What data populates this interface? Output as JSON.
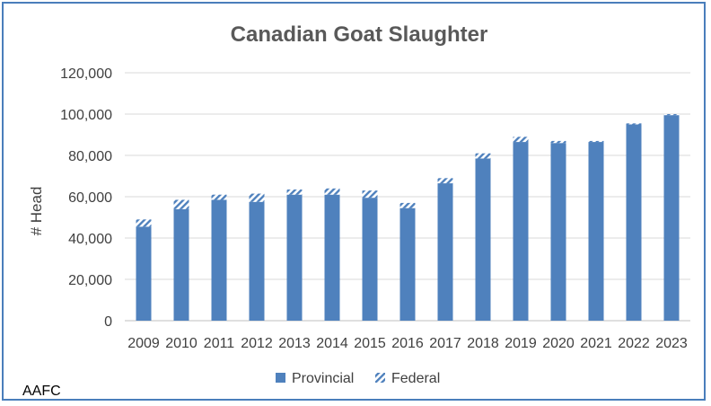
{
  "chart_data": {
    "type": "bar",
    "stacked": true,
    "title": "Canadian Goat Slaughter",
    "xlabel": "",
    "ylabel": "# Head",
    "ylim": [
      0,
      120000
    ],
    "yticks": [
      0,
      20000,
      40000,
      60000,
      80000,
      100000,
      120000
    ],
    "ytick_labels": [
      "0",
      "20,000",
      "40,000",
      "60,000",
      "80,000",
      "100,000",
      "120,000"
    ],
    "grid": true,
    "legend": "bottom",
    "categories": [
      "2009",
      "2010",
      "2011",
      "2012",
      "2013",
      "2014",
      "2015",
      "2016",
      "2017",
      "2018",
      "2019",
      "2020",
      "2021",
      "2022",
      "2023"
    ],
    "series": [
      {
        "name": "Provincial",
        "color": "#4f81bd",
        "pattern": "solid",
        "values": [
          45500,
          54000,
          58500,
          57500,
          61000,
          61000,
          59500,
          54500,
          66500,
          78500,
          86500,
          86000,
          86500,
          95000,
          99500
        ]
      },
      {
        "name": "Federal",
        "color": "#4f81bd",
        "pattern": "hatched",
        "values": [
          3500,
          4500,
          2500,
          4000,
          2500,
          3000,
          3500,
          2500,
          2500,
          2500,
          2500,
          1000,
          500,
          500,
          500
        ]
      }
    ]
  },
  "source_note": "AAFC"
}
